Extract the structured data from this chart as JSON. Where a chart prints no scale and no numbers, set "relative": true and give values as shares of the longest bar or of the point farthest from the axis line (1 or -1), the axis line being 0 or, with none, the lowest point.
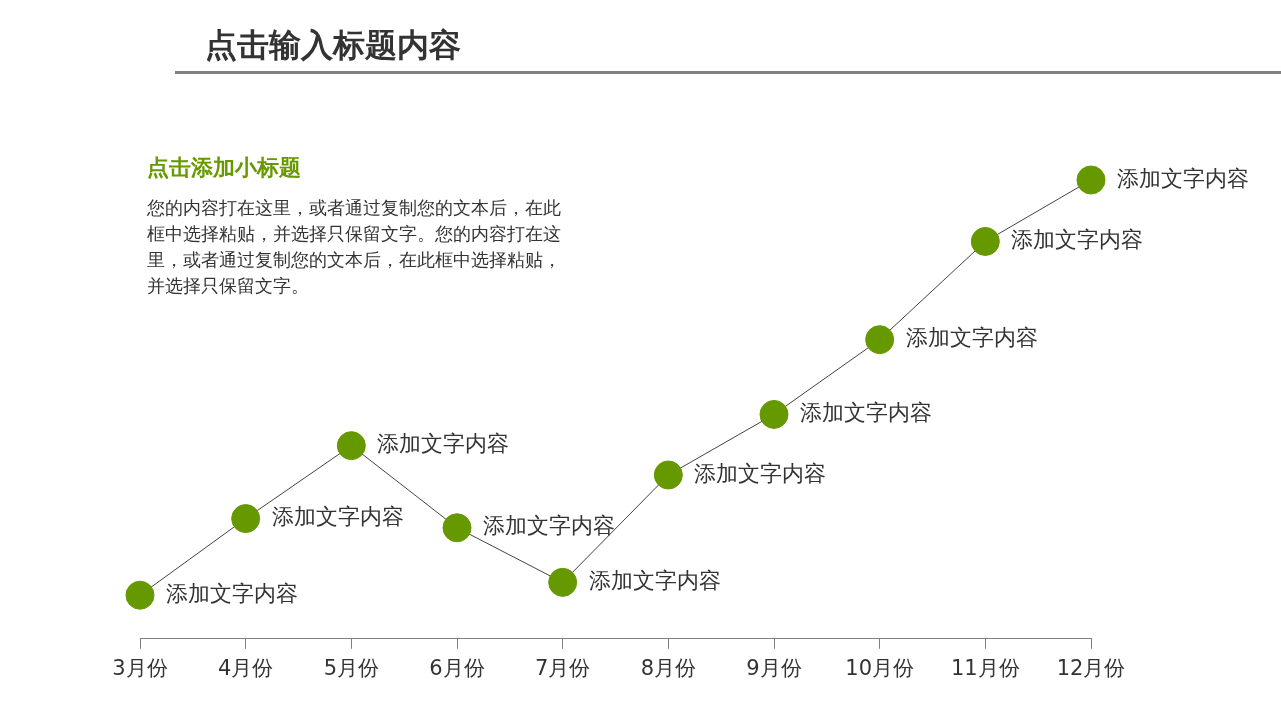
{
  "chart_data": {
    "type": "line",
    "title": "点击输入标题内容",
    "subtitle": "点击添加小标题",
    "categories": [
      "3月份",
      "4月份",
      "5月份",
      "6月份",
      "7月份",
      "8月份",
      "9月份",
      "10月份",
      "11月份",
      "12月份"
    ],
    "relative": true,
    "marker": "circle",
    "legend": false,
    "grid": false,
    "tick_labels": "x",
    "series": [
      {
        "color": "#669900",
        "values": [
          0.095,
          0.262,
          0.421,
          0.242,
          0.123,
          0.357,
          0.489,
          0.652,
          0.866,
          1
        ]
      }
    ],
    "annotations": [
      "您的内容打在这里，或者通过复制您的文本后，在此框中选择粘贴，并选择只保留文字。您的内容打在这里，或者通过复制您的文本后，在此框中选择粘贴，并选择只保留文字。",
      {
        "text": "添加文字内容",
        "x": "3月份",
        "y": 0.095
      },
      {
        "text": "添加文字内容",
        "x": "4月份",
        "y": 0.262
      },
      {
        "text": "添加文字内容",
        "x": "5月份",
        "y": 0.421
      },
      {
        "text": "添加文字内容",
        "x": "6月份",
        "y": 0.242
      },
      {
        "text": "添加文字内容",
        "x": "7月份",
        "y": 0.123
      },
      {
        "text": "添加文字内容",
        "x": "8月份",
        "y": 0.357
      },
      {
        "text": "添加文字内容",
        "x": "9月份",
        "y": 0.489
      },
      {
        "text": "添加文字内容",
        "x": "10月份",
        "y": 0.652
      },
      {
        "text": "添加文字内容",
        "x": "11月份",
        "y": 0.866
      },
      {
        "text": "添加文字内容",
        "x": "12月份",
        "y": 1
      }
    ]
  }
}
